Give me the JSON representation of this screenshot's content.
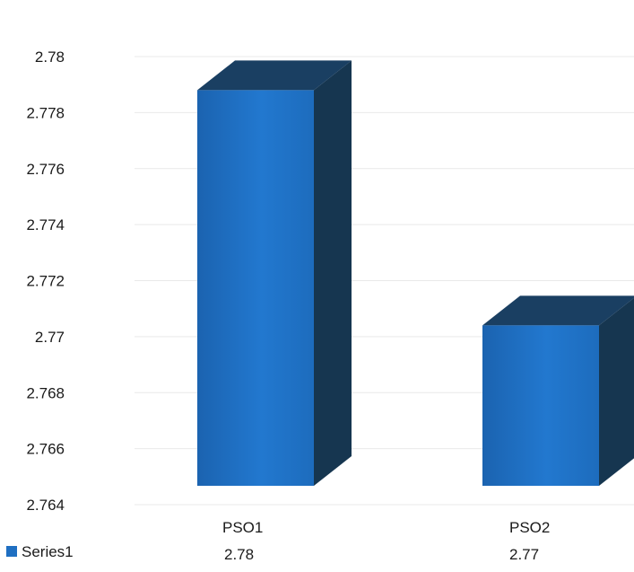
{
  "chart_data": {
    "type": "bar",
    "style": "3d-column",
    "title": "",
    "xlabel": "",
    "ylabel": "",
    "categories": [
      "PSO1",
      "PSO2"
    ],
    "series": [
      {
        "name": "Series1",
        "values": [
          2.7788,
          2.7704
        ],
        "color": "#1f6fc2",
        "top_color": "#1a3f62",
        "side_color": "#163650"
      }
    ],
    "data_labels": [
      "2.78",
      "2.77"
    ],
    "ylim": [
      2.764,
      2.78
    ],
    "y_ticks": [
      "2.764",
      "2.766",
      "2.768",
      "2.77",
      "2.772",
      "2.774",
      "2.776",
      "2.778",
      "2.78"
    ],
    "grid": true,
    "legend": {
      "position": "bottom-left",
      "entries": [
        "Series1"
      ]
    },
    "colors": {
      "text": "#1a1a1a",
      "gridline": "#e9e9e9"
    }
  }
}
